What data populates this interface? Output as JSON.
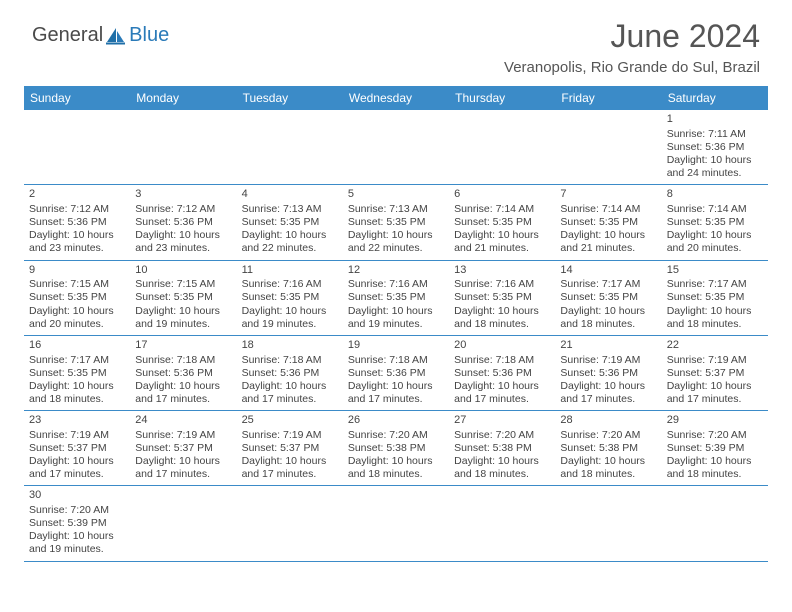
{
  "logo": {
    "general": "General",
    "blue": "Blue"
  },
  "title": "June 2024",
  "subtitle": "Veranopolis, Rio Grande do Sul, Brazil",
  "colors": {
    "header_bg": "#3b8bc8",
    "header_text": "#ffffff",
    "border": "#3b8bc8",
    "body_text": "#444444",
    "title_text": "#555555",
    "logo_gray": "#4a4a4a",
    "logo_blue": "#2a7ab8",
    "page_bg": "#ffffff"
  },
  "typography": {
    "title_fontsize": 32,
    "subtitle_fontsize": 15,
    "dow_fontsize": 12,
    "cell_fontsize": 10.5,
    "daynum_fontsize": 11
  },
  "daysOfWeek": [
    "Sunday",
    "Monday",
    "Tuesday",
    "Wednesday",
    "Thursday",
    "Friday",
    "Saturday"
  ],
  "startWeekday": 6,
  "daysInMonth": 30,
  "days": [
    {
      "n": 1,
      "sunrise": "7:11 AM",
      "sunset": "5:36 PM",
      "daylight": "10 hours and 24 minutes."
    },
    {
      "n": 2,
      "sunrise": "7:12 AM",
      "sunset": "5:36 PM",
      "daylight": "10 hours and 23 minutes."
    },
    {
      "n": 3,
      "sunrise": "7:12 AM",
      "sunset": "5:36 PM",
      "daylight": "10 hours and 23 minutes."
    },
    {
      "n": 4,
      "sunrise": "7:13 AM",
      "sunset": "5:35 PM",
      "daylight": "10 hours and 22 minutes."
    },
    {
      "n": 5,
      "sunrise": "7:13 AM",
      "sunset": "5:35 PM",
      "daylight": "10 hours and 22 minutes."
    },
    {
      "n": 6,
      "sunrise": "7:14 AM",
      "sunset": "5:35 PM",
      "daylight": "10 hours and 21 minutes."
    },
    {
      "n": 7,
      "sunrise": "7:14 AM",
      "sunset": "5:35 PM",
      "daylight": "10 hours and 21 minutes."
    },
    {
      "n": 8,
      "sunrise": "7:14 AM",
      "sunset": "5:35 PM",
      "daylight": "10 hours and 20 minutes."
    },
    {
      "n": 9,
      "sunrise": "7:15 AM",
      "sunset": "5:35 PM",
      "daylight": "10 hours and 20 minutes."
    },
    {
      "n": 10,
      "sunrise": "7:15 AM",
      "sunset": "5:35 PM",
      "daylight": "10 hours and 19 minutes."
    },
    {
      "n": 11,
      "sunrise": "7:16 AM",
      "sunset": "5:35 PM",
      "daylight": "10 hours and 19 minutes."
    },
    {
      "n": 12,
      "sunrise": "7:16 AM",
      "sunset": "5:35 PM",
      "daylight": "10 hours and 19 minutes."
    },
    {
      "n": 13,
      "sunrise": "7:16 AM",
      "sunset": "5:35 PM",
      "daylight": "10 hours and 18 minutes."
    },
    {
      "n": 14,
      "sunrise": "7:17 AM",
      "sunset": "5:35 PM",
      "daylight": "10 hours and 18 minutes."
    },
    {
      "n": 15,
      "sunrise": "7:17 AM",
      "sunset": "5:35 PM",
      "daylight": "10 hours and 18 minutes."
    },
    {
      "n": 16,
      "sunrise": "7:17 AM",
      "sunset": "5:35 PM",
      "daylight": "10 hours and 18 minutes."
    },
    {
      "n": 17,
      "sunrise": "7:18 AM",
      "sunset": "5:36 PM",
      "daylight": "10 hours and 17 minutes."
    },
    {
      "n": 18,
      "sunrise": "7:18 AM",
      "sunset": "5:36 PM",
      "daylight": "10 hours and 17 minutes."
    },
    {
      "n": 19,
      "sunrise": "7:18 AM",
      "sunset": "5:36 PM",
      "daylight": "10 hours and 17 minutes."
    },
    {
      "n": 20,
      "sunrise": "7:18 AM",
      "sunset": "5:36 PM",
      "daylight": "10 hours and 17 minutes."
    },
    {
      "n": 21,
      "sunrise": "7:19 AM",
      "sunset": "5:36 PM",
      "daylight": "10 hours and 17 minutes."
    },
    {
      "n": 22,
      "sunrise": "7:19 AM",
      "sunset": "5:37 PM",
      "daylight": "10 hours and 17 minutes."
    },
    {
      "n": 23,
      "sunrise": "7:19 AM",
      "sunset": "5:37 PM",
      "daylight": "10 hours and 17 minutes."
    },
    {
      "n": 24,
      "sunrise": "7:19 AM",
      "sunset": "5:37 PM",
      "daylight": "10 hours and 17 minutes."
    },
    {
      "n": 25,
      "sunrise": "7:19 AM",
      "sunset": "5:37 PM",
      "daylight": "10 hours and 17 minutes."
    },
    {
      "n": 26,
      "sunrise": "7:20 AM",
      "sunset": "5:38 PM",
      "daylight": "10 hours and 18 minutes."
    },
    {
      "n": 27,
      "sunrise": "7:20 AM",
      "sunset": "5:38 PM",
      "daylight": "10 hours and 18 minutes."
    },
    {
      "n": 28,
      "sunrise": "7:20 AM",
      "sunset": "5:38 PM",
      "daylight": "10 hours and 18 minutes."
    },
    {
      "n": 29,
      "sunrise": "7:20 AM",
      "sunset": "5:39 PM",
      "daylight": "10 hours and 18 minutes."
    },
    {
      "n": 30,
      "sunrise": "7:20 AM",
      "sunset": "5:39 PM",
      "daylight": "10 hours and 19 minutes."
    }
  ],
  "labels": {
    "sunrise": "Sunrise:",
    "sunset": "Sunset:",
    "daylight": "Daylight:"
  }
}
